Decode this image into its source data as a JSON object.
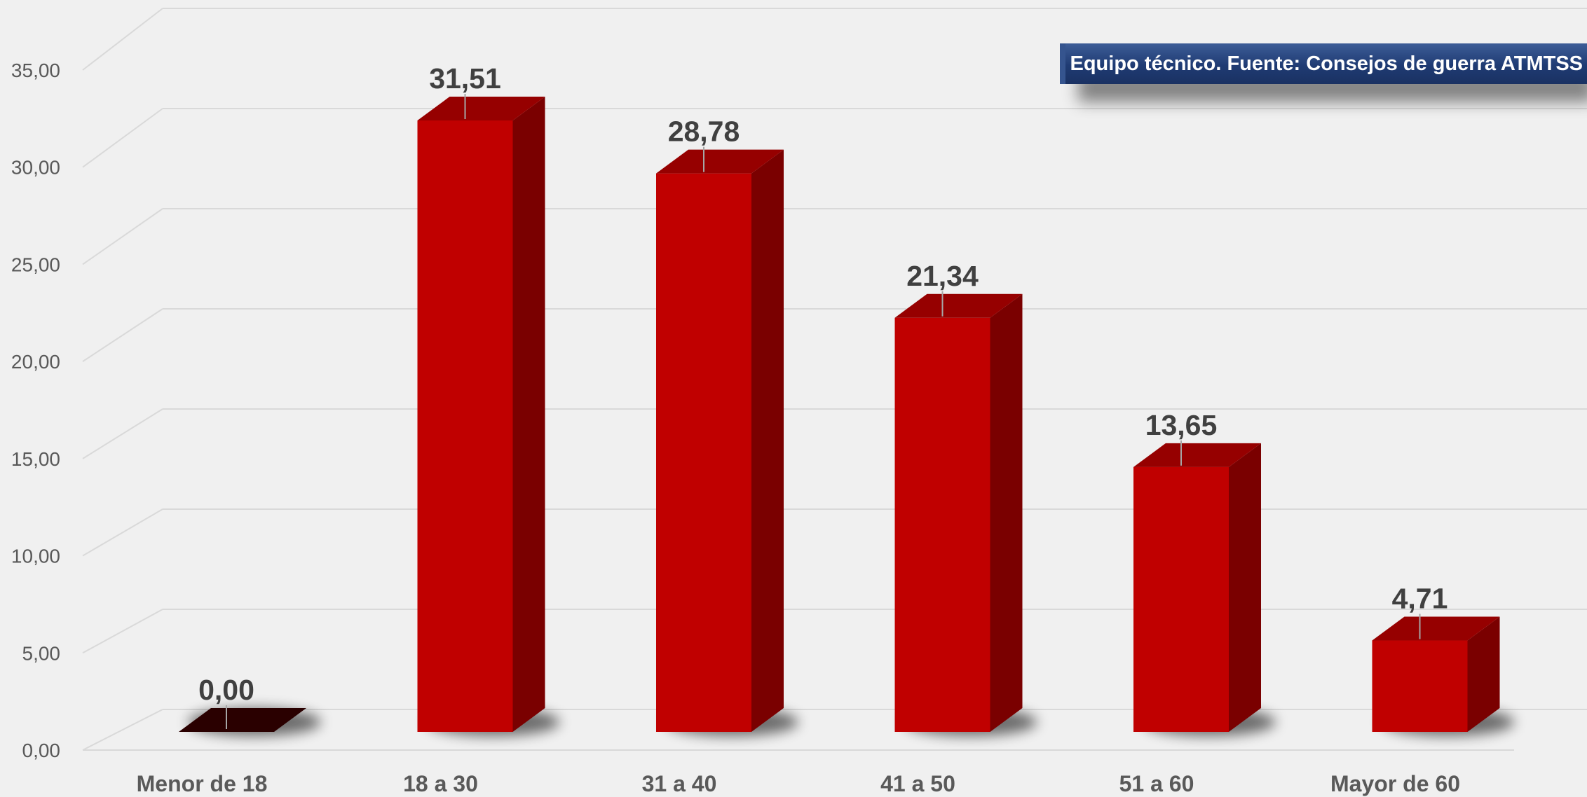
{
  "source_note": "Equipo técnico. Fuente: Consejos de guerra ATMTSS",
  "colors": {
    "bar_front": "#c00000",
    "bar_side": "#7a0000",
    "bar_top": "#960000",
    "zero_bar": "#2a0000",
    "gridline": "#d9d9d9",
    "axis_text": "#595959",
    "label_text": "#404040",
    "banner": "#1f3b73"
  },
  "chart_data": {
    "type": "bar",
    "categories": [
      "Menor de 18",
      "18 a 30",
      "31 a 40",
      "41 a 50",
      "51 a 60",
      "Mayor de 60"
    ],
    "values": [
      0.0,
      31.51,
      28.78,
      21.34,
      13.65,
      4.71
    ],
    "data_labels": [
      "0,00",
      "31,51",
      "28,78",
      "21,34",
      "13,65",
      "4,71"
    ],
    "y_ticks": [
      0,
      5,
      10,
      15,
      20,
      25,
      30,
      35
    ],
    "y_tick_labels": [
      "0,00",
      "5,00",
      "10,00",
      "15,00",
      "20,00",
      "25,00",
      "30,00",
      "35,00"
    ],
    "ylim": [
      0,
      38
    ],
    "grid": true,
    "style": "3d-column"
  }
}
